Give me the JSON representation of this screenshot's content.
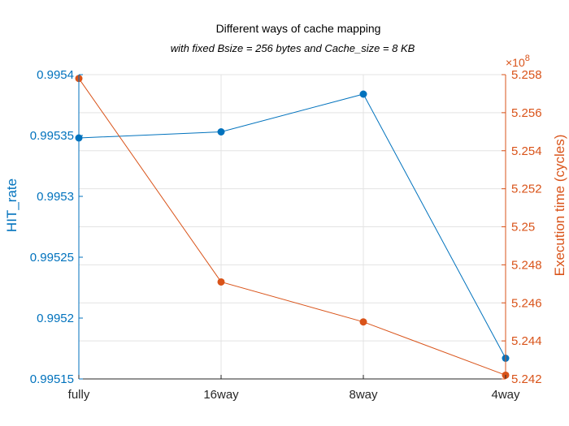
{
  "chart_data": {
    "type": "line",
    "title": "Different ways of cache mapping",
    "subtitle": "with fixed Bsize = 256 bytes and Cache_size = 8 KB",
    "categories": [
      "fully",
      "16way",
      "8way",
      "4way"
    ],
    "grid": true,
    "left_axis": {
      "label": "HIT_rate",
      "ylim": [
        0.99515,
        0.9954
      ],
      "ticks": [
        0.99515,
        0.9952,
        0.99525,
        0.9953,
        0.99535,
        0.9954
      ],
      "tick_labels": [
        "0.99515",
        "0.9952",
        "0.99525",
        "0.9953",
        "0.99535",
        "0.9954"
      ],
      "color": "#0072BD"
    },
    "right_axis": {
      "label": "Execution time (cycles)",
      "exponent_label": "×10",
      "exponent": "8",
      "ylim": [
        5.242,
        5.258
      ],
      "ticks": [
        5.242,
        5.244,
        5.246,
        5.248,
        5.25,
        5.252,
        5.254,
        5.256,
        5.258
      ],
      "tick_labels": [
        "5.242",
        "5.244",
        "5.246",
        "5.248",
        "5.25",
        "5.252",
        "5.254",
        "5.256",
        "5.258"
      ],
      "color": "#D95319"
    },
    "series": [
      {
        "axis": "left",
        "color": "#0072BD",
        "values": [
          0.995348,
          0.995353,
          0.995384,
          0.995167
        ]
      },
      {
        "axis": "right",
        "color": "#D95319",
        "values": [
          5.2578,
          5.2471,
          5.245,
          5.2422
        ]
      }
    ]
  }
}
